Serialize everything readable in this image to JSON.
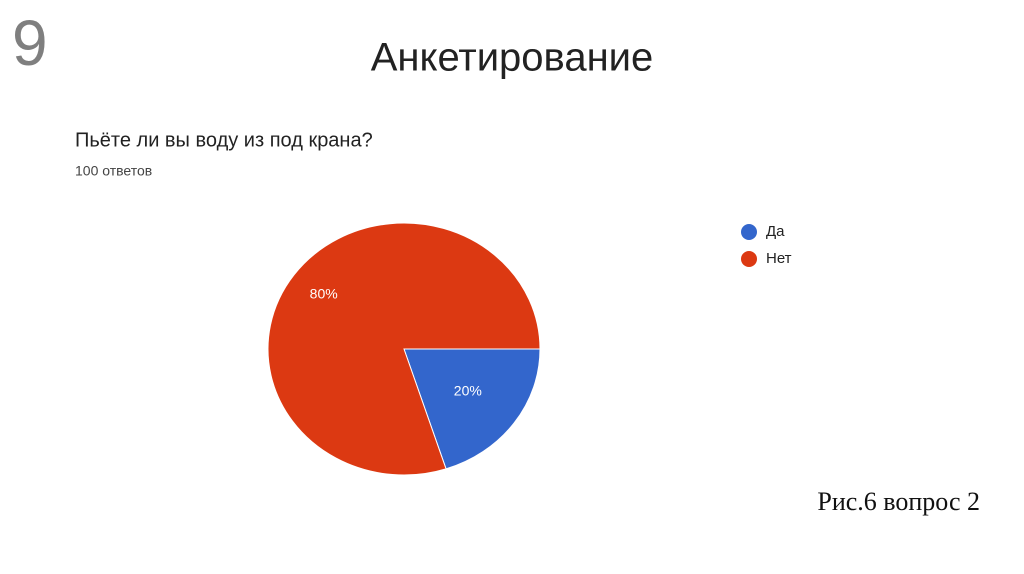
{
  "slide_number": "9",
  "heading": "Анкетирование",
  "caption": "Рис.6 вопрос 2",
  "chart_data": {
    "type": "pie",
    "title": "Пьёте ли вы воду из под крана?",
    "subtitle": "100 ответов",
    "categories": [
      "Да",
      "Нет"
    ],
    "values": [
      20,
      80
    ],
    "value_labels": [
      "20%",
      "80%"
    ],
    "colors": [
      "#3366cc",
      "#dc3912"
    ]
  }
}
